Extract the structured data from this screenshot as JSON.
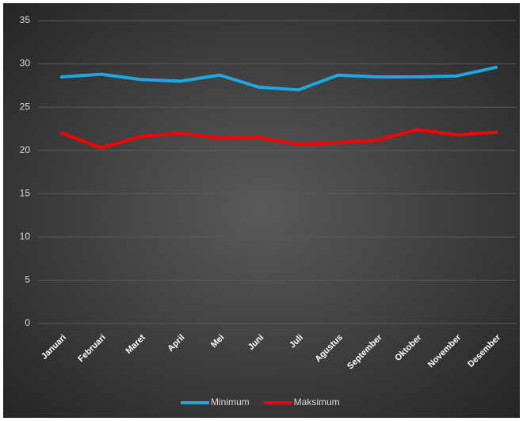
{
  "chart_data": {
    "type": "line",
    "categories": [
      "Januari",
      "Februari",
      "Maret",
      "April",
      "Mei",
      "Juni",
      "Juli",
      "Agustus",
      "September",
      "Oktober",
      "November",
      "Desember"
    ],
    "series": [
      {
        "name": "Minimum",
        "color": "#1ea7e1",
        "values": [
          28.5,
          28.8,
          28.2,
          28.0,
          28.7,
          27.3,
          27.0,
          28.7,
          28.5,
          28.5,
          28.6,
          29.6
        ]
      },
      {
        "name": "Maksimum",
        "color": "#ff0000",
        "values": [
          22.0,
          20.3,
          21.6,
          22.0,
          21.4,
          21.5,
          20.7,
          20.9,
          21.2,
          22.4,
          21.8,
          22.1
        ]
      }
    ],
    "ylim": [
      0,
      35
    ],
    "yticks": [
      0,
      5,
      10,
      15,
      20,
      25,
      30,
      35
    ],
    "grid": true,
    "legend": "bottom"
  }
}
